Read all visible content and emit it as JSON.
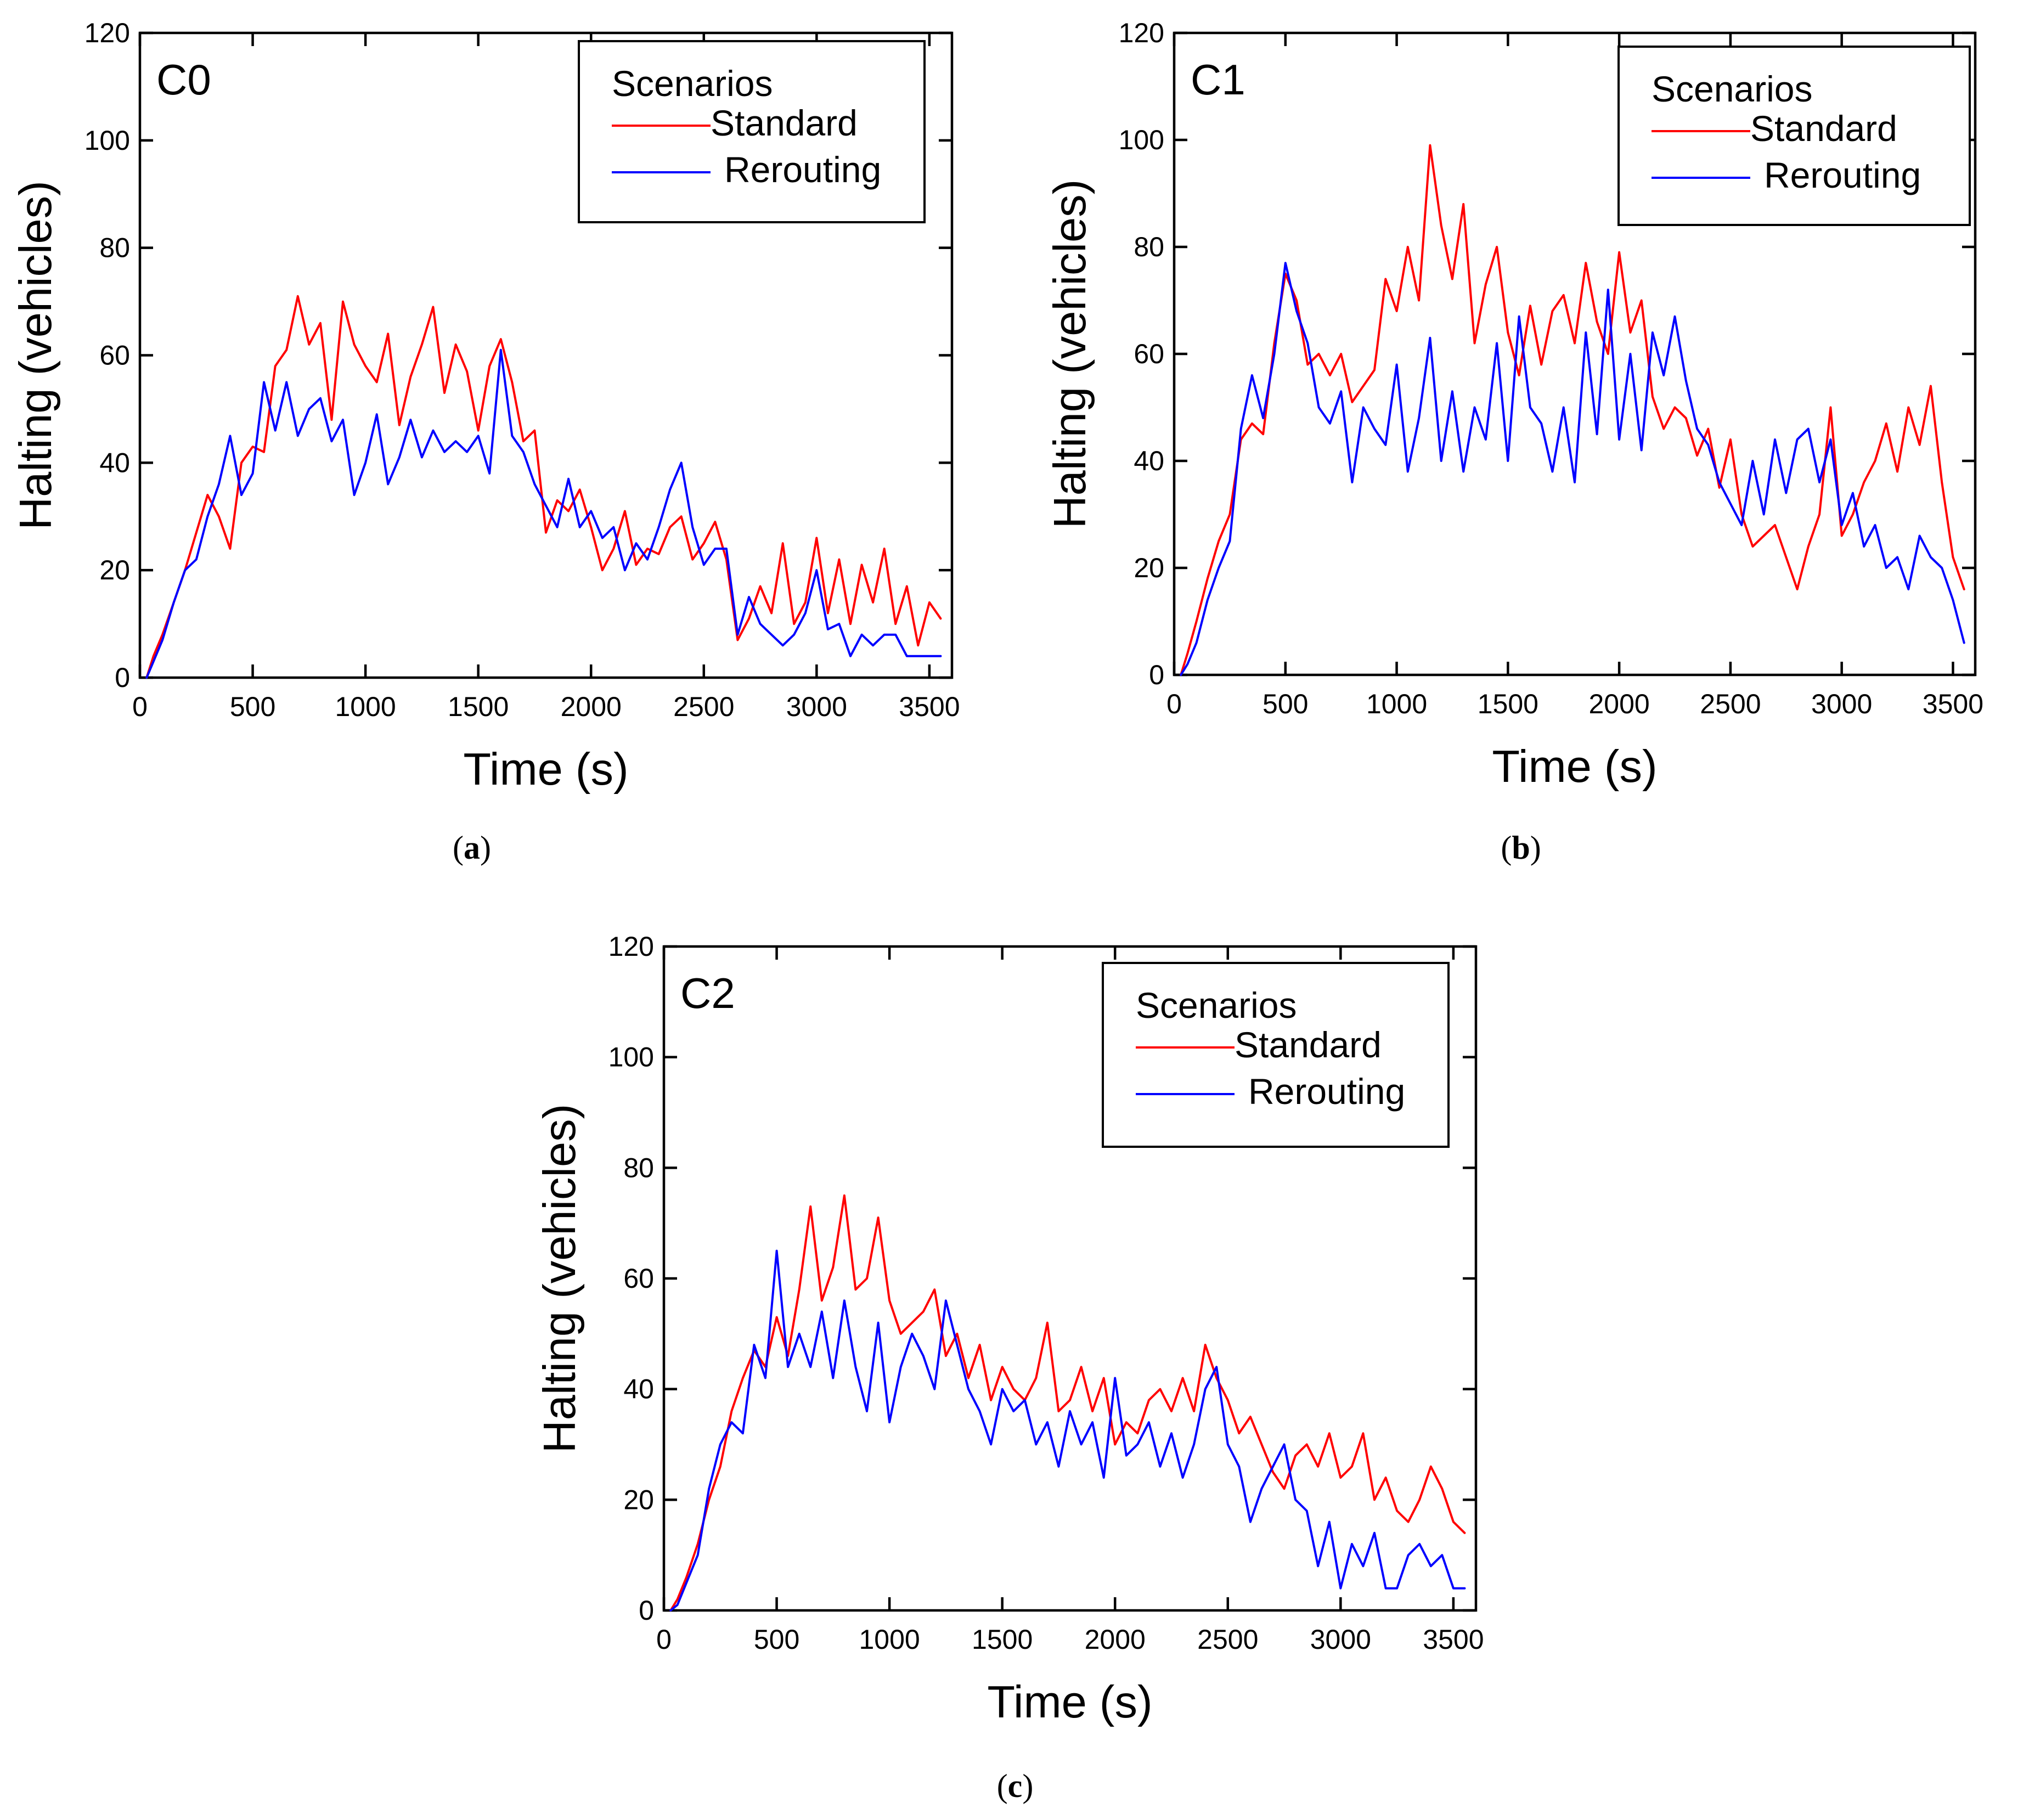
{
  "figure": {
    "captions": [
      "a",
      "b",
      "c"
    ]
  },
  "chart_data": [
    {
      "type": "line",
      "panel_label": "C0",
      "caption": "a",
      "xlabel": "Time (s)",
      "ylabel": "Halting (vehicles)",
      "xlim": [
        0,
        3600
      ],
      "ylim": [
        0,
        120
      ],
      "xticks": [
        "0",
        "500",
        "1000",
        "1500",
        "2000",
        "2500",
        "3000",
        "3500"
      ],
      "yticks": [
        "0",
        "20",
        "40",
        "60",
        "80",
        "100",
        "120"
      ],
      "legend": {
        "title": "Scenarios",
        "placement": "top-right"
      },
      "series": [
        {
          "name": "Standard",
          "color": "#ff0000",
          "x": [
            30,
            60,
            100,
            150,
            200,
            250,
            300,
            350,
            400,
            450,
            500,
            550,
            600,
            650,
            700,
            750,
            800,
            850,
            900,
            950,
            1000,
            1050,
            1100,
            1150,
            1200,
            1250,
            1300,
            1350,
            1400,
            1450,
            1500,
            1550,
            1600,
            1650,
            1700,
            1750,
            1800,
            1850,
            1900,
            1950,
            2000,
            2050,
            2100,
            2150,
            2200,
            2250,
            2300,
            2350,
            2400,
            2450,
            2500,
            2550,
            2600,
            2650,
            2700,
            2750,
            2800,
            2850,
            2900,
            2950,
            3000,
            3050,
            3100,
            3150,
            3200,
            3250,
            3300,
            3350,
            3400,
            3450,
            3500,
            3550
          ],
          "values": [
            0,
            4,
            8,
            14,
            20,
            27,
            34,
            30,
            24,
            40,
            43,
            42,
            58,
            61,
            71,
            62,
            66,
            48,
            70,
            62,
            58,
            55,
            64,
            47,
            56,
            62,
            69,
            53,
            62,
            57,
            46,
            58,
            63,
            55,
            44,
            46,
            27,
            33,
            31,
            35,
            28,
            20,
            24,
            31,
            21,
            24,
            23,
            28,
            30,
            22,
            25,
            29,
            22,
            7,
            11,
            17,
            12,
            25,
            10,
            14,
            26,
            12,
            22,
            10,
            21,
            14,
            24,
            10,
            17,
            6,
            14,
            11
          ]
        },
        {
          "name": "Rerouting",
          "color": "#0000ff",
          "x": [
            30,
            60,
            100,
            150,
            200,
            250,
            300,
            350,
            400,
            450,
            500,
            550,
            600,
            650,
            700,
            750,
            800,
            850,
            900,
            950,
            1000,
            1050,
            1100,
            1150,
            1200,
            1250,
            1300,
            1350,
            1400,
            1450,
            1500,
            1550,
            1600,
            1650,
            1700,
            1750,
            1800,
            1850,
            1900,
            1950,
            2000,
            2050,
            2100,
            2150,
            2200,
            2250,
            2300,
            2350,
            2400,
            2450,
            2500,
            2550,
            2600,
            2650,
            2700,
            2750,
            2800,
            2850,
            2900,
            2950,
            3000,
            3050,
            3100,
            3150,
            3200,
            3250,
            3300,
            3350,
            3400,
            3450,
            3500,
            3550
          ],
          "values": [
            0,
            3,
            7,
            14,
            20,
            22,
            30,
            36,
            45,
            34,
            38,
            55,
            46,
            55,
            45,
            50,
            52,
            44,
            48,
            34,
            40,
            49,
            36,
            41,
            48,
            41,
            46,
            42,
            44,
            42,
            45,
            38,
            61,
            45,
            42,
            36,
            32,
            28,
            37,
            28,
            31,
            26,
            28,
            20,
            25,
            22,
            28,
            35,
            40,
            28,
            21,
            24,
            24,
            8,
            15,
            10,
            8,
            6,
            8,
            12,
            20,
            9,
            10,
            4,
            8,
            6,
            8,
            8,
            4,
            4,
            4,
            4
          ]
        }
      ]
    },
    {
      "type": "line",
      "panel_label": "C1",
      "caption": "b",
      "xlabel": "Time (s)",
      "ylabel": "Halting (vehicles)",
      "xlim": [
        0,
        3600
      ],
      "ylim": [
        0,
        120
      ],
      "xticks": [
        "0",
        "500",
        "1000",
        "1500",
        "2000",
        "2500",
        "3000",
        "3500"
      ],
      "yticks": [
        "0",
        "20",
        "40",
        "60",
        "80",
        "100",
        "120"
      ],
      "legend": {
        "title": "Scenarios",
        "placement": "top-right"
      },
      "series": [
        {
          "name": "Standard",
          "color": "#ff0000",
          "x": [
            30,
            60,
            100,
            150,
            200,
            250,
            300,
            350,
            400,
            450,
            500,
            550,
            600,
            650,
            700,
            750,
            800,
            850,
            900,
            950,
            1000,
            1050,
            1100,
            1150,
            1200,
            1250,
            1300,
            1350,
            1400,
            1450,
            1500,
            1550,
            1600,
            1650,
            1700,
            1750,
            1800,
            1850,
            1900,
            1950,
            2000,
            2050,
            2100,
            2150,
            2200,
            2250,
            2300,
            2350,
            2400,
            2450,
            2500,
            2550,
            2600,
            2650,
            2700,
            2750,
            2800,
            2850,
            2900,
            2950,
            3000,
            3050,
            3100,
            3150,
            3200,
            3250,
            3300,
            3350,
            3400,
            3450,
            3500,
            3550
          ],
          "values": [
            0,
            4,
            10,
            18,
            25,
            30,
            44,
            47,
            45,
            62,
            75,
            70,
            58,
            60,
            56,
            60,
            51,
            54,
            57,
            74,
            68,
            80,
            70,
            99,
            84,
            74,
            88,
            62,
            73,
            80,
            64,
            56,
            69,
            58,
            68,
            71,
            62,
            77,
            66,
            60,
            79,
            64,
            70,
            52,
            46,
            50,
            48,
            41,
            46,
            35,
            44,
            30,
            24,
            26,
            28,
            22,
            16,
            24,
            30,
            50,
            26,
            30,
            36,
            40,
            47,
            38,
            50,
            43,
            54,
            36,
            22,
            16
          ]
        },
        {
          "name": "Rerouting",
          "color": "#0000ff",
          "x": [
            30,
            60,
            100,
            150,
            200,
            250,
            300,
            350,
            400,
            450,
            500,
            550,
            600,
            650,
            700,
            750,
            800,
            850,
            900,
            950,
            1000,
            1050,
            1100,
            1150,
            1200,
            1250,
            1300,
            1350,
            1400,
            1450,
            1500,
            1550,
            1600,
            1650,
            1700,
            1750,
            1800,
            1850,
            1900,
            1950,
            2000,
            2050,
            2100,
            2150,
            2200,
            2250,
            2300,
            2350,
            2400,
            2450,
            2500,
            2550,
            2600,
            2650,
            2700,
            2750,
            2800,
            2850,
            2900,
            2950,
            3000,
            3050,
            3100,
            3150,
            3200,
            3250,
            3300,
            3350,
            3400,
            3450,
            3500,
            3550
          ],
          "values": [
            0,
            2,
            6,
            14,
            20,
            25,
            46,
            56,
            48,
            60,
            77,
            68,
            62,
            50,
            47,
            53,
            36,
            50,
            46,
            43,
            58,
            38,
            48,
            63,
            40,
            53,
            38,
            50,
            44,
            62,
            40,
            67,
            50,
            47,
            38,
            50,
            36,
            64,
            45,
            72,
            44,
            60,
            42,
            64,
            56,
            67,
            55,
            46,
            43,
            36,
            32,
            28,
            40,
            30,
            44,
            34,
            44,
            46,
            36,
            44,
            28,
            34,
            24,
            28,
            20,
            22,
            16,
            26,
            22,
            20,
            14,
            6
          ]
        }
      ]
    },
    {
      "type": "line",
      "panel_label": "C2",
      "caption": "c",
      "xlabel": "Time (s)",
      "ylabel": "Halting (vehicles)",
      "xlim": [
        0,
        3600
      ],
      "ylim": [
        0,
        120
      ],
      "xticks": [
        "0",
        "500",
        "1000",
        "1500",
        "2000",
        "2500",
        "3000",
        "3500"
      ],
      "yticks": [
        "0",
        "20",
        "40",
        "60",
        "80",
        "100",
        "120"
      ],
      "legend": {
        "title": "Scenarios",
        "placement": "top-right"
      },
      "series": [
        {
          "name": "Standard",
          "color": "#ff0000",
          "x": [
            30,
            60,
            100,
            150,
            200,
            250,
            300,
            350,
            400,
            450,
            500,
            550,
            600,
            650,
            700,
            750,
            800,
            850,
            900,
            950,
            1000,
            1050,
            1100,
            1150,
            1200,
            1250,
            1300,
            1350,
            1400,
            1450,
            1500,
            1550,
            1600,
            1650,
            1700,
            1750,
            1800,
            1850,
            1900,
            1950,
            2000,
            2050,
            2100,
            2150,
            2200,
            2250,
            2300,
            2350,
            2400,
            2450,
            2500,
            2550,
            2600,
            2650,
            2700,
            2750,
            2800,
            2850,
            2900,
            2950,
            3000,
            3050,
            3100,
            3150,
            3200,
            3250,
            3300,
            3350,
            3400,
            3450,
            3500,
            3550
          ],
          "values": [
            0,
            2,
            6,
            12,
            20,
            26,
            36,
            42,
            47,
            44,
            53,
            46,
            58,
            73,
            56,
            62,
            75,
            58,
            60,
            71,
            56,
            50,
            52,
            54,
            58,
            46,
            50,
            42,
            48,
            38,
            44,
            40,
            38,
            42,
            52,
            36,
            38,
            44,
            36,
            42,
            30,
            34,
            32,
            38,
            40,
            36,
            42,
            36,
            48,
            42,
            38,
            32,
            35,
            30,
            25,
            22,
            28,
            30,
            26,
            32,
            24,
            26,
            32,
            20,
            24,
            18,
            16,
            20,
            26,
            22,
            16,
            14
          ]
        },
        {
          "name": "Rerouting",
          "color": "#0000ff",
          "x": [
            30,
            60,
            100,
            150,
            200,
            250,
            300,
            350,
            400,
            450,
            500,
            550,
            600,
            650,
            700,
            750,
            800,
            850,
            900,
            950,
            1000,
            1050,
            1100,
            1150,
            1200,
            1250,
            1300,
            1350,
            1400,
            1450,
            1500,
            1550,
            1600,
            1650,
            1700,
            1750,
            1800,
            1850,
            1900,
            1950,
            2000,
            2050,
            2100,
            2150,
            2200,
            2250,
            2300,
            2350,
            2400,
            2450,
            2500,
            2550,
            2600,
            2650,
            2700,
            2750,
            2800,
            2850,
            2900,
            2950,
            3000,
            3050,
            3100,
            3150,
            3200,
            3250,
            3300,
            3350,
            3400,
            3450,
            3500,
            3550
          ],
          "values": [
            0,
            1,
            5,
            10,
            22,
            30,
            34,
            32,
            48,
            42,
            65,
            44,
            50,
            44,
            54,
            42,
            56,
            44,
            36,
            52,
            34,
            44,
            50,
            46,
            40,
            56,
            48,
            40,
            36,
            30,
            40,
            36,
            38,
            30,
            34,
            26,
            36,
            30,
            34,
            24,
            42,
            28,
            30,
            34,
            26,
            32,
            24,
            30,
            40,
            44,
            30,
            26,
            16,
            22,
            26,
            30,
            20,
            18,
            8,
            16,
            4,
            12,
            8,
            14,
            4,
            4,
            10,
            12,
            8,
            10,
            4,
            4
          ]
        }
      ]
    }
  ]
}
